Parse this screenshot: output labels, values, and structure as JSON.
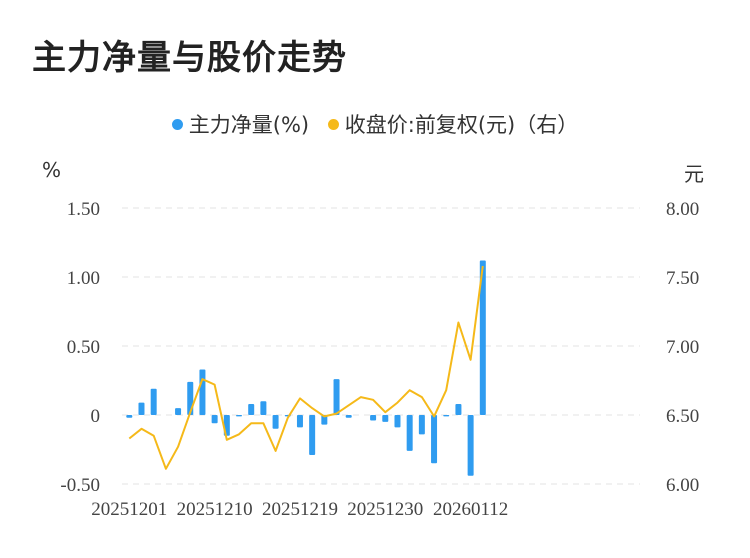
{
  "title": "主力净量与股价走势",
  "legend": {
    "series1": "主力净量(%)",
    "series2": "收盘价:前复权(元)（右）"
  },
  "units": {
    "left": "%",
    "right": "元"
  },
  "colors": {
    "bar": "#2f9cf0",
    "line": "#f5b919",
    "grid": "#e3e3e3"
  },
  "chart_data": {
    "type": "bar+line",
    "x_tick_labels": [
      "20251201",
      "20251210",
      "20251219",
      "20251230",
      "20260112"
    ],
    "y_left": {
      "ticks": [
        "1.50",
        "1.00",
        "0.50",
        "0",
        "-0.50"
      ],
      "range": [
        -0.5,
        1.5
      ]
    },
    "y_right": {
      "ticks": [
        "8.00",
        "7.50",
        "7.00",
        "6.50",
        "6.00"
      ],
      "range": [
        6.0,
        8.0
      ]
    },
    "grid": "horizontal dashed",
    "legend_position": "top",
    "series": [
      {
        "name": "主力净量(%)",
        "type": "bar",
        "axis": "left",
        "values": [
          -0.02,
          0.09,
          0.19,
          0,
          0.05,
          0.24,
          0.33,
          -0.06,
          -0.15,
          -0.01,
          0.08,
          0.1,
          -0.1,
          -0.01,
          -0.09,
          -0.29,
          -0.07,
          0.26,
          -0.02,
          0,
          -0.04,
          -0.05,
          -0.09,
          -0.26,
          -0.14,
          -0.35,
          -0.01,
          0.08,
          -0.44,
          1.12
        ]
      },
      {
        "name": "收盘价:前复权(元)",
        "type": "line",
        "axis": "right",
        "values": [
          6.33,
          6.4,
          6.35,
          6.11,
          6.27,
          6.52,
          6.76,
          6.72,
          6.32,
          6.36,
          6.44,
          6.44,
          6.24,
          6.48,
          6.62,
          6.55,
          6.49,
          6.51,
          6.57,
          6.63,
          6.61,
          6.52,
          6.59,
          6.68,
          6.63,
          6.49,
          6.68,
          7.17,
          6.9,
          7.58
        ]
      }
    ]
  }
}
